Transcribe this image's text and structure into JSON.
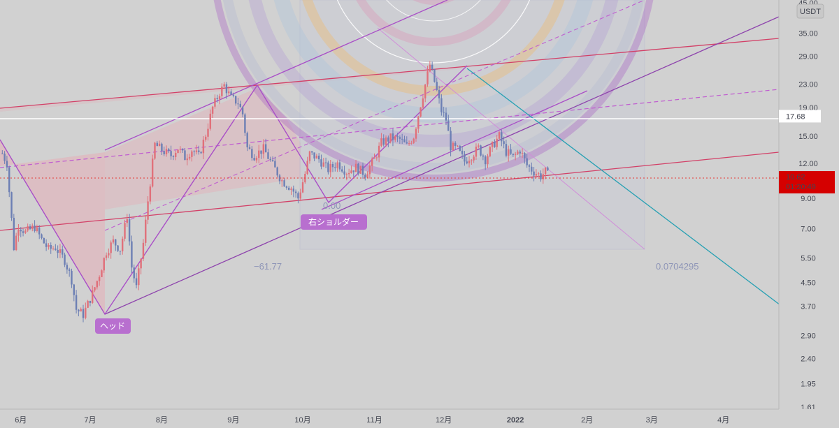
{
  "chart_data": {
    "type": "candlestick",
    "title": "",
    "quote_currency": "USDT",
    "y_scale": "log",
    "ylim": [
      1.61,
      45
    ],
    "y_ticks": [
      "45.00",
      "35.00",
      "29.00",
      "23.00",
      "19.00",
      "15.00",
      "12.00",
      "9.00",
      "7.00",
      "5.50",
      "4.50",
      "3.70",
      "2.90",
      "2.40",
      "1.95",
      "1.61"
    ],
    "x_ticks": [
      "6月",
      "7月",
      "8月",
      "9月",
      "10月",
      "11月",
      "12月",
      "2022",
      "2月",
      "3月",
      "4月"
    ],
    "x_range": [
      "2021-05-23",
      "2022-04-25"
    ],
    "last_price": "10.62",
    "countdown": "01:20:49",
    "horizontal_level": "17.68",
    "fib_labels": {
      "left": "−61.77",
      "zero": "0.00",
      "right": "0.0704295"
    },
    "annotations": [
      "ヘッド",
      "右ショルダー"
    ],
    "grid": false,
    "colors": {
      "background": "#d1d1d1",
      "candle_up": "#e0707a",
      "candle_down": "#6c7fb4",
      "price_line": "#e53935",
      "price_badge": "#d50000",
      "trend_purple": "#a94fc7",
      "trend_red": "#d24067",
      "trend_teal": "#26a0b3",
      "tag_bg": "#b86fcf",
      "white_level": "#ffffff"
    },
    "close_series": [
      [
        "2021-05-24",
        13.0
      ],
      [
        "2021-05-26",
        12.0
      ],
      [
        "2021-05-29",
        6.0
      ],
      [
        "2021-05-31",
        7.2
      ],
      [
        "2021-06-03",
        6.8
      ],
      [
        "2021-06-07",
        7.1
      ],
      [
        "2021-06-10",
        6.4
      ],
      [
        "2021-06-13",
        5.9
      ],
      [
        "2021-06-16",
        6.0
      ],
      [
        "2021-06-20",
        5.4
      ],
      [
        "2021-06-23",
        4.6
      ],
      [
        "2021-06-25",
        3.6
      ],
      [
        "2021-06-28",
        3.45
      ],
      [
        "2021-07-02",
        4.1
      ],
      [
        "2021-07-05",
        4.8
      ],
      [
        "2021-07-08",
        5.8
      ],
      [
        "2021-07-11",
        6.3
      ],
      [
        "2021-07-14",
        5.9
      ],
      [
        "2021-07-17",
        7.8
      ],
      [
        "2021-07-19",
        5.1
      ],
      [
        "2021-07-21",
        4.3
      ],
      [
        "2021-07-24",
        6.2
      ],
      [
        "2021-07-26",
        8.8
      ],
      [
        "2021-07-29",
        14.0
      ],
      [
        "2021-08-02",
        13.2
      ],
      [
        "2021-08-05",
        12.8
      ],
      [
        "2021-08-08",
        13.6
      ],
      [
        "2021-08-11",
        12.6
      ],
      [
        "2021-08-14",
        13.4
      ],
      [
        "2021-08-17",
        12.7
      ],
      [
        "2021-08-20",
        15.2
      ],
      [
        "2021-08-23",
        19.0
      ],
      [
        "2021-08-26",
        21.5
      ],
      [
        "2021-08-28",
        22.8
      ],
      [
        "2021-08-31",
        20.5
      ],
      [
        "2021-09-03",
        19.8
      ],
      [
        "2021-09-05",
        18.0
      ],
      [
        "2021-09-07",
        13.6
      ],
      [
        "2021-09-10",
        12.8
      ],
      [
        "2021-09-14",
        13.5
      ],
      [
        "2021-09-18",
        11.8
      ],
      [
        "2021-09-22",
        10.4
      ],
      [
        "2021-09-26",
        9.8
      ],
      [
        "2021-09-29",
        9.0
      ],
      [
        "2021-10-02",
        11.0
      ],
      [
        "2021-10-04",
        13.0
      ],
      [
        "2021-10-08",
        12.4
      ],
      [
        "2021-10-12",
        11.4
      ],
      [
        "2021-10-16",
        12.0
      ],
      [
        "2021-10-20",
        11.2
      ],
      [
        "2021-10-24",
        11.6
      ],
      [
        "2021-10-28",
        11.0
      ],
      [
        "2021-11-01",
        12.4
      ],
      [
        "2021-11-04",
        14.2
      ],
      [
        "2021-11-08",
        14.8
      ],
      [
        "2021-11-12",
        14.6
      ],
      [
        "2021-11-15",
        13.8
      ],
      [
        "2021-11-18",
        15.0
      ],
      [
        "2021-11-21",
        19.5
      ],
      [
        "2021-11-25",
        27.0
      ],
      [
        "2021-11-27",
        23.5
      ],
      [
        "2021-11-30",
        18.5
      ],
      [
        "2021-12-02",
        17.2
      ],
      [
        "2021-12-04",
        13.8
      ],
      [
        "2021-12-07",
        13.4
      ],
      [
        "2021-12-10",
        12.2
      ],
      [
        "2021-12-13",
        12.8
      ],
      [
        "2021-12-16",
        13.6
      ],
      [
        "2021-12-19",
        12.4
      ],
      [
        "2021-12-22",
        13.8
      ],
      [
        "2021-12-25",
        15.0
      ],
      [
        "2021-12-28",
        13.2
      ],
      [
        "2021-12-31",
        12.6
      ],
      [
        "2022-01-03",
        13.4
      ],
      [
        "2022-01-06",
        11.8
      ],
      [
        "2022-01-09",
        11.2
      ],
      [
        "2022-01-12",
        10.8
      ],
      [
        "2022-01-14",
        11.2
      ],
      [
        "2022-01-16",
        10.62
      ]
    ]
  }
}
